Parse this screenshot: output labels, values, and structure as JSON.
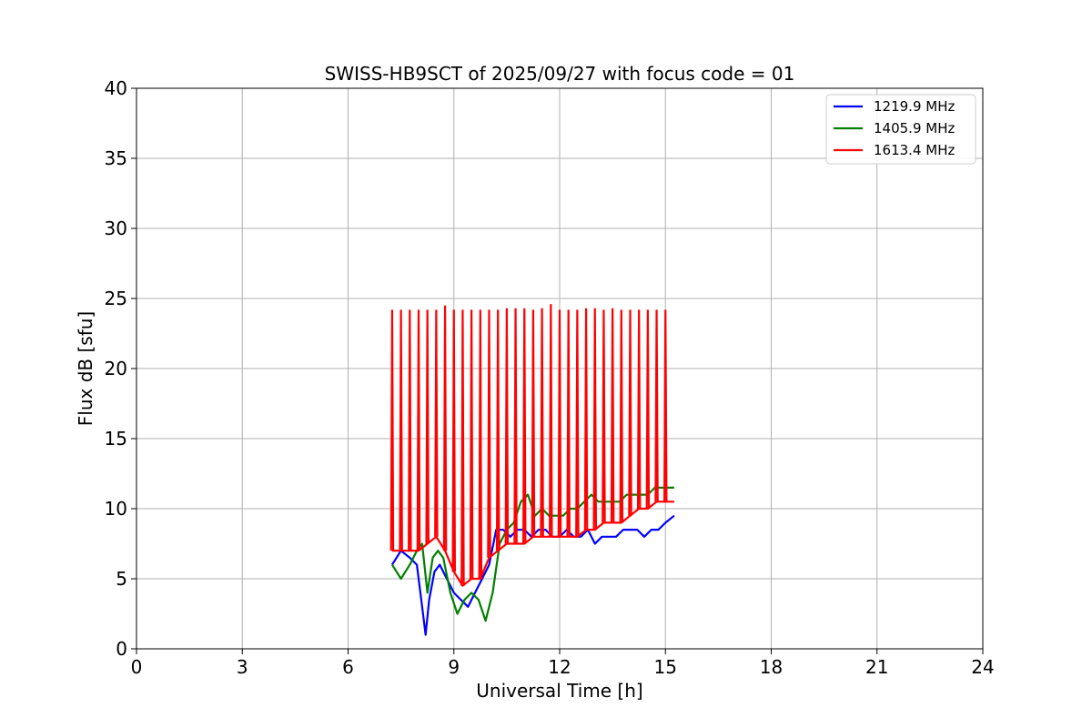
{
  "chart_data": {
    "type": "line",
    "title": "SWISS-HB9SCT of 2025/09/27 with focus code = 01",
    "xlabel": "Universal Time [h]",
    "ylabel": "Flux dB [sfu]",
    "xlim": [
      0,
      24
    ],
    "ylim": [
      0,
      40
    ],
    "xticks": [
      0,
      3,
      6,
      9,
      12,
      15,
      18,
      21,
      24
    ],
    "yticks": [
      0,
      5,
      10,
      15,
      20,
      25,
      30,
      35,
      40
    ],
    "grid": true,
    "legend_position": "top-right",
    "series": [
      {
        "name": "1219.9 MHz",
        "color": "#0000ff",
        "x": [
          7.25,
          7.5,
          7.75,
          7.95,
          8.1,
          8.2,
          8.3,
          8.45,
          8.6,
          8.8,
          9.0,
          9.2,
          9.4,
          9.6,
          9.8,
          10.0,
          10.2,
          10.4,
          10.6,
          10.8,
          11.0,
          11.2,
          11.4,
          11.6,
          11.8,
          12.0,
          12.2,
          12.4,
          12.6,
          12.8,
          13.0,
          13.2,
          13.4,
          13.6,
          13.8,
          14.0,
          14.2,
          14.4,
          14.6,
          14.8,
          15.0,
          15.25
        ],
        "values": [
          6.0,
          7.0,
          6.5,
          6.0,
          3.0,
          1.0,
          3.5,
          5.5,
          6.0,
          5.0,
          4.0,
          3.5,
          3.0,
          4.0,
          5.0,
          6.0,
          8.5,
          8.5,
          8.0,
          8.5,
          8.5,
          8.0,
          8.5,
          8.5,
          8.0,
          8.0,
          8.5,
          8.0,
          8.0,
          8.5,
          7.5,
          8.0,
          8.0,
          8.0,
          8.5,
          8.5,
          8.5,
          8.0,
          8.5,
          8.5,
          9.0,
          9.5
        ]
      },
      {
        "name": "1405.9 MHz",
        "color": "#008000",
        "x": [
          7.25,
          7.5,
          7.75,
          7.95,
          8.1,
          8.25,
          8.4,
          8.55,
          8.7,
          8.9,
          9.1,
          9.3,
          9.5,
          9.7,
          9.9,
          10.1,
          10.3,
          10.5,
          10.7,
          10.9,
          11.1,
          11.3,
          11.5,
          11.7,
          11.9,
          12.1,
          12.3,
          12.5,
          12.7,
          12.9,
          13.1,
          13.3,
          13.5,
          13.7,
          13.9,
          14.1,
          14.3,
          14.5,
          14.7,
          14.9,
          15.1,
          15.25
        ],
        "values": [
          6.0,
          5.0,
          6.0,
          7.0,
          7.5,
          4.0,
          6.5,
          7.0,
          6.5,
          4.0,
          2.5,
          3.5,
          4.0,
          3.5,
          2.0,
          4.0,
          7.5,
          8.5,
          9.0,
          10.5,
          11.0,
          9.5,
          10.0,
          9.5,
          9.5,
          9.5,
          10.0,
          10.0,
          10.5,
          11.0,
          10.5,
          10.5,
          10.5,
          10.5,
          11.0,
          11.0,
          11.0,
          11.0,
          11.5,
          11.5,
          11.5,
          11.5
        ]
      },
      {
        "name": "1613.4 MHz",
        "color": "#ff0000",
        "x": [
          7.25,
          7.5,
          7.75,
          8.0,
          8.25,
          8.5,
          8.75,
          9.0,
          9.25,
          9.5,
          9.75,
          10.0,
          10.25,
          10.5,
          10.75,
          11.0,
          11.25,
          11.5,
          11.75,
          12.0,
          12.25,
          12.5,
          12.75,
          13.0,
          13.25,
          13.5,
          13.75,
          14.0,
          14.25,
          14.5,
          14.75,
          15.0,
          15.25
        ],
        "values": [
          7.0,
          7.0,
          7.0,
          7.0,
          7.5,
          8.0,
          7.0,
          5.5,
          4.5,
          5.0,
          5.0,
          6.5,
          7.0,
          7.5,
          7.5,
          7.5,
          8.0,
          8.0,
          8.0,
          8.0,
          8.0,
          8.0,
          8.5,
          8.5,
          9.0,
          9.0,
          9.0,
          9.5,
          10.0,
          10.0,
          10.5,
          10.5,
          10.5
        ]
      }
    ],
    "spikes": {
      "series": "1613.4 MHz",
      "x": [
        7.25,
        7.5,
        7.75,
        8.0,
        8.25,
        8.5,
        8.75,
        9.0,
        9.25,
        9.5,
        9.75,
        10.0,
        10.25,
        10.5,
        10.75,
        11.0,
        11.25,
        11.5,
        11.75,
        12.0,
        12.25,
        12.5,
        12.75,
        13.0,
        13.25,
        13.5,
        13.75,
        14.0,
        14.25,
        14.5,
        14.75,
        15.0
      ],
      "values": [
        24.2,
        24.2,
        24.2,
        24.2,
        24.2,
        24.2,
        24.5,
        24.2,
        24.2,
        24.2,
        24.2,
        24.2,
        24.2,
        24.3,
        24.3,
        24.3,
        24.2,
        24.3,
        24.6,
        24.2,
        24.2,
        24.2,
        24.3,
        24.3,
        24.2,
        24.3,
        24.2,
        24.2,
        24.2,
        24.2,
        24.2,
        24.2
      ]
    }
  }
}
